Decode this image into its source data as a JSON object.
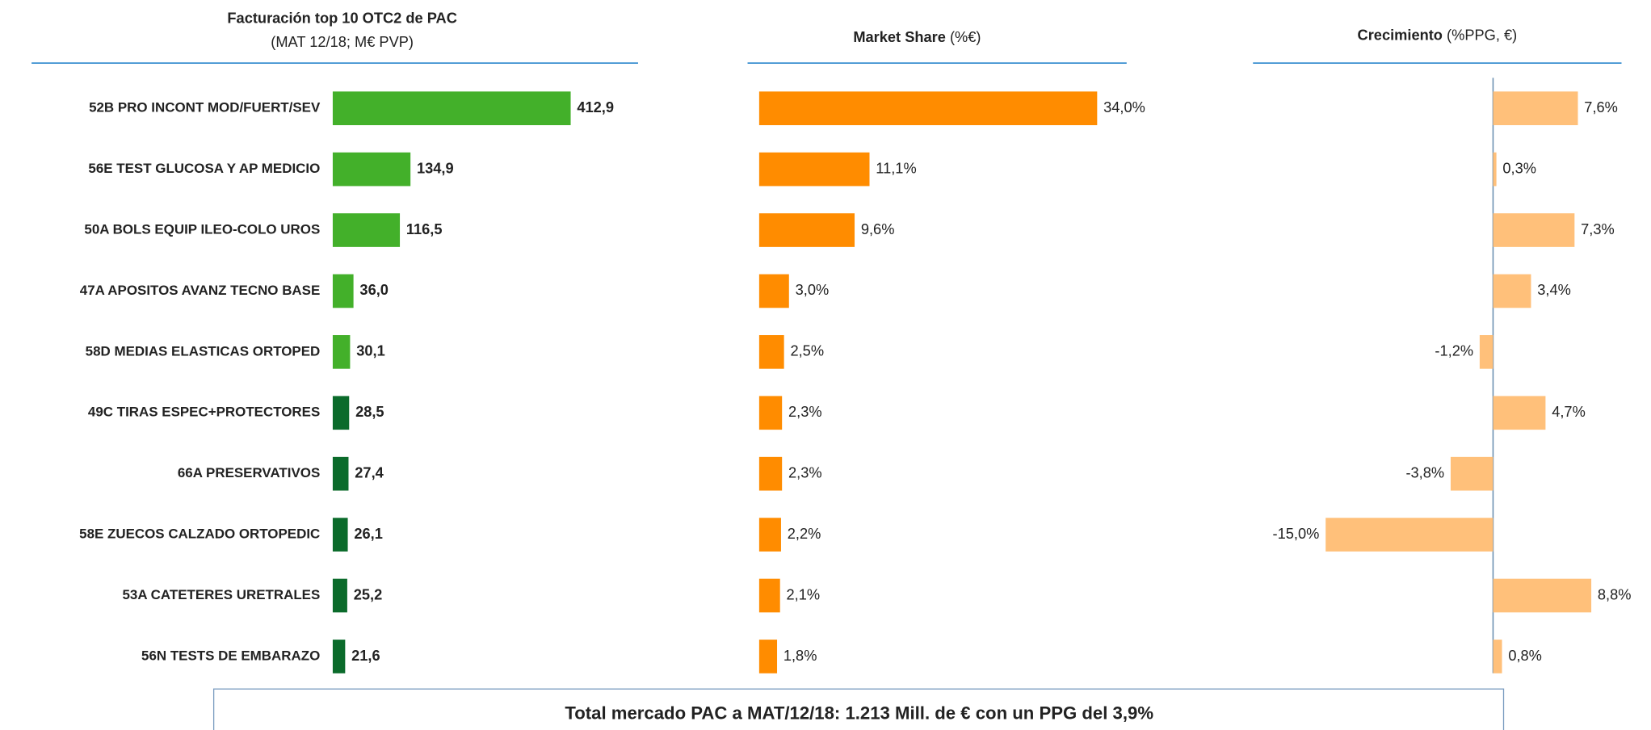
{
  "chart_data": [
    {
      "type": "bar",
      "title": "Facturación top 10 OTC2 de PAC",
      "subtitle": "(MAT 12/18; M€ PVP)",
      "categories": [
        "52B PRO INCONT MOD/FUERT/SEV",
        "56E TEST GLUCOSA Y AP MEDICIO",
        "50A BOLS EQUIP ILEO-COLO UROS",
        "47A APOSITOS AVANZ TECNO BASE",
        "58D MEDIAS ELASTICAS ORTOPED",
        "49C TIRAS ESPEC+PROTECTORES",
        "66A PRESERVATIVOS",
        "58E ZUECOS CALZADO ORTOPEDIC",
        "53A CATETERES URETRALES",
        "56N TESTS DE EMBARAZO"
      ],
      "values": [
        412.9,
        134.9,
        116.5,
        36.0,
        30.1,
        28.5,
        27.4,
        26.1,
        25.2,
        21.6
      ],
      "value_labels": [
        "412,9",
        "134,9",
        "116,5",
        "36,0",
        "30,1",
        "28,5",
        "27,4",
        "26,1",
        "25,2",
        "21,6"
      ],
      "colors": [
        "#43b02a",
        "#43b02a",
        "#43b02a",
        "#43b02a",
        "#43b02a",
        "#0b6b2b",
        "#0b6b2b",
        "#0b6b2b",
        "#0b6b2b",
        "#0b6b2b"
      ]
    },
    {
      "type": "bar",
      "title": "Market Share",
      "subtitle": "(%€)",
      "values": [
        34.0,
        11.1,
        9.6,
        3.0,
        2.5,
        2.3,
        2.3,
        2.2,
        2.1,
        1.8
      ],
      "value_labels": [
        "34,0%",
        "11,1%",
        "9,6%",
        "3,0%",
        "2,5%",
        "2,3%",
        "2,3%",
        "2,2%",
        "2,1%",
        "1,8%"
      ],
      "color": "#ff8c00"
    },
    {
      "type": "bar",
      "title": "Crecimiento",
      "subtitle": "(%PPG, €)",
      "values": [
        7.6,
        0.3,
        7.3,
        3.4,
        -1.2,
        4.7,
        -3.8,
        -15.0,
        8.8,
        0.8
      ],
      "value_labels": [
        "7,6%",
        "0,3%",
        "7,3%",
        "3,4%",
        "-1,2%",
        "4,7%",
        "-3,8%",
        "-15,0%",
        "8,8%",
        "0,8%"
      ],
      "color": "#ffc07a"
    }
  ],
  "footer": "Total mercado PAC a MAT/12/18: 1.213 Mill. de € con un PPG del 3,9%"
}
